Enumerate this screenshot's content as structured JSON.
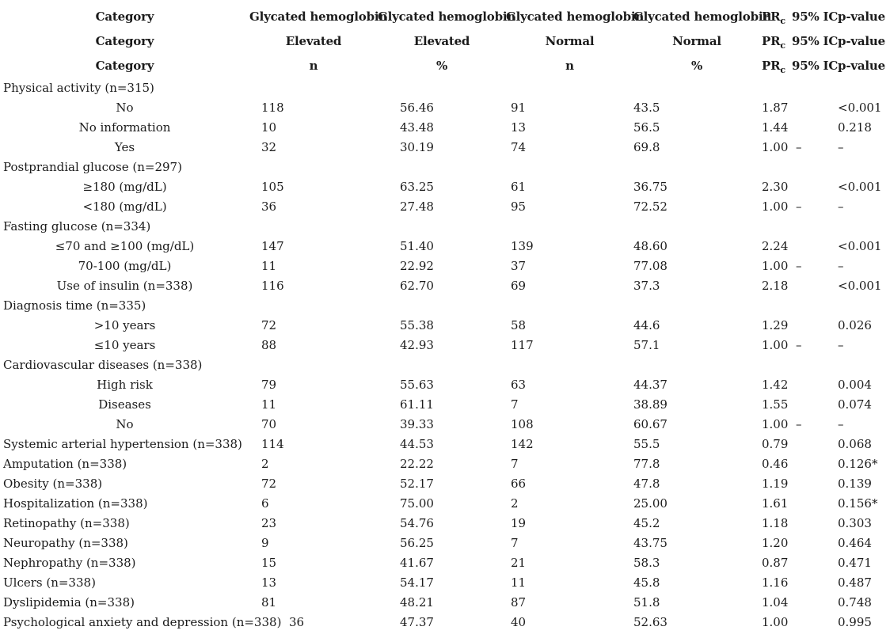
{
  "table": {
    "header_rows": [
      {
        "category": "Category",
        "c1": "Glycated hemoglobin",
        "c2": "Glycated hemoglobin",
        "c3": "Glycated hemoglobin",
        "c4": "Glycated hemoglobin",
        "prc_main": "PR",
        "prc_sub": "c",
        "ic": "95% IC",
        "p": "p-value"
      },
      {
        "category": "Category",
        "c1": "Elevated",
        "c2": "Elevated",
        "c3": "Normal",
        "c4": "Normal",
        "prc_main": "PR",
        "prc_sub": "c",
        "ic": "95% IC",
        "p": "p-value"
      },
      {
        "category": "Category",
        "c1": "n",
        "c2": "%",
        "c3": "n",
        "c4": "%",
        "prc_main": "PR",
        "prc_sub": "c",
        "ic": "95% IC",
        "p": "p-value"
      }
    ],
    "rows": [
      {
        "label": "Physical activity (n=315)",
        "type": "section",
        "values": [
          "",
          "",
          "",
          "",
          "",
          "",
          ""
        ]
      },
      {
        "label": "No",
        "type": "sub",
        "values": [
          "118",
          "56.46",
          "91",
          "43.5",
          "1.87",
          "",
          "<0.001"
        ]
      },
      {
        "label": "No information",
        "type": "sub",
        "values": [
          "10",
          "43.48",
          "13",
          "56.5",
          "1.44",
          "",
          "0.218"
        ]
      },
      {
        "label": "Yes",
        "type": "sub",
        "values": [
          "32",
          "30.19",
          "74",
          "69.8",
          "1.00",
          "–",
          "–"
        ]
      },
      {
        "label": "Postprandial glucose (n=297)",
        "type": "section",
        "values": [
          "",
          "",
          "",
          "",
          "",
          "",
          ""
        ]
      },
      {
        "label": "≥180 (mg/dL)",
        "type": "sub",
        "values": [
          "105",
          "63.25",
          "61",
          "36.75",
          "2.30",
          "",
          "<0.001"
        ]
      },
      {
        "label": "<180 (mg/dL)",
        "type": "sub",
        "values": [
          "36",
          "27.48",
          "95",
          "72.52",
          "1.00",
          "–",
          "–"
        ]
      },
      {
        "label": "Fasting glucose (n=334)",
        "type": "section",
        "values": [
          "",
          "",
          "",
          "",
          "",
          "",
          ""
        ]
      },
      {
        "label": "≤70 and ≥100 (mg/dL)",
        "type": "sub",
        "values": [
          "147",
          "51.40",
          "139",
          "48.60",
          "2.24",
          "",
          "<0.001"
        ]
      },
      {
        "label": "70-100 (mg/dL)",
        "type": "sub",
        "values": [
          "11",
          "22.92",
          "37",
          "77.08",
          "1.00",
          "–",
          "–"
        ]
      },
      {
        "label": "Use of insulin (n=338)",
        "type": "sub",
        "values": [
          "116",
          "62.70",
          "69",
          "37.3",
          "2.18",
          "",
          "<0.001"
        ]
      },
      {
        "label": "Diagnosis time (n=335)",
        "type": "section",
        "values": [
          "",
          "",
          "",
          "",
          "",
          "",
          ""
        ]
      },
      {
        "label": ">10 years",
        "type": "sub",
        "values": [
          "72",
          "55.38",
          "58",
          "44.6",
          "1.29",
          "",
          "0.026"
        ]
      },
      {
        "label": "≤10 years",
        "type": "sub",
        "values": [
          "88",
          "42.93",
          "117",
          "57.1",
          "1.00",
          "–",
          "–"
        ]
      },
      {
        "label": "Cardiovascular diseases (n=338)",
        "type": "section",
        "values": [
          "",
          "",
          "",
          "",
          "",
          "",
          ""
        ]
      },
      {
        "label": "High risk",
        "type": "sub",
        "values": [
          "79",
          "55.63",
          "63",
          "44.37",
          "1.42",
          "",
          "0.004"
        ]
      },
      {
        "label": "Diseases",
        "type": "sub",
        "values": [
          "11",
          "61.11",
          "7",
          "38.89",
          "1.55",
          "",
          "0.074"
        ]
      },
      {
        "label": "No",
        "type": "sub",
        "values": [
          "70",
          "39.33",
          "108",
          "60.67",
          "1.00",
          "–",
          "–"
        ]
      },
      {
        "label": "Systemic arterial hypertension (n=338)",
        "type": "data",
        "values": [
          "114",
          "44.53",
          "142",
          "55.5",
          "0.79",
          "",
          "0.068"
        ]
      },
      {
        "label": "Amputation (n=338)",
        "type": "data",
        "values": [
          "2",
          "22.22",
          "7",
          "77.8",
          "0.46",
          "",
          "0.126*"
        ]
      },
      {
        "label": "Obesity (n=338)",
        "type": "data",
        "values": [
          "72",
          "52.17",
          "66",
          "47.8",
          "1.19",
          "",
          "0.139"
        ]
      },
      {
        "label": "Hospitalization (n=338)",
        "type": "data",
        "values": [
          "6",
          "75.00",
          "2",
          "25.00",
          "1.61",
          "",
          "0.156*"
        ]
      },
      {
        "label": "Retinopathy (n=338)",
        "type": "data",
        "values": [
          "23",
          "54.76",
          "19",
          "45.2",
          "1.18",
          "",
          "0.303"
        ]
      },
      {
        "label": "Neuropathy (n=338)",
        "type": "data",
        "values": [
          "9",
          "56.25",
          "7",
          "43.75",
          "1.20",
          "",
          "0.464"
        ]
      },
      {
        "label": "Nephropathy (n=338)",
        "type": "data",
        "values": [
          "15",
          "41.67",
          "21",
          "58.3",
          "0.87",
          "",
          "0.471"
        ]
      },
      {
        "label": "Ulcers (n=338)",
        "type": "data",
        "values": [
          "13",
          "54.17",
          "11",
          "45.8",
          "1.16",
          "",
          "0.487"
        ]
      },
      {
        "label": "Dyslipidemia (n=338)",
        "type": "data",
        "values": [
          "81",
          "48.21",
          "87",
          "51.8",
          "1.04",
          "",
          "0.748"
        ]
      },
      {
        "label": "Psychological anxiety and depression (n=338)",
        "type": "data",
        "values": [
          "36",
          "47.37",
          "40",
          "52.63",
          "1.00",
          "",
          "0.995"
        ]
      }
    ]
  }
}
